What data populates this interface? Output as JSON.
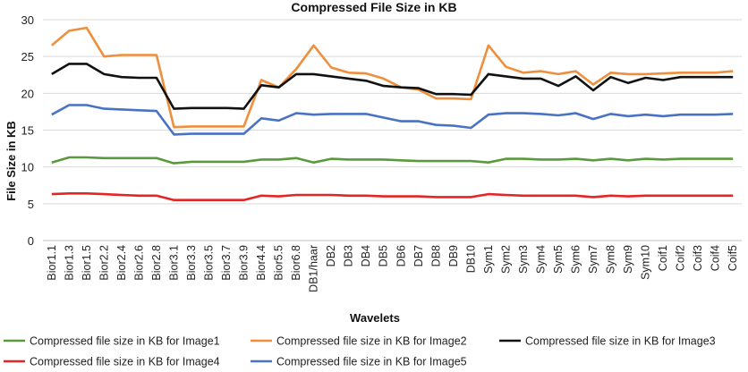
{
  "chart_data": {
    "type": "line",
    "title": "Compressed File Size in KB",
    "xlabel": "Wavelets",
    "ylabel": "File Size in KB",
    "ylim": [
      0,
      30
    ],
    "yticks": [
      0,
      5,
      10,
      15,
      20,
      25,
      30
    ],
    "grid": true,
    "legend_position": "bottom",
    "categories": [
      "Bior1.1",
      "Bior1.3",
      "Bior1.5",
      "Bior2.2",
      "Bior2.4",
      "Bior2.6",
      "Bior2.8",
      "Bior3.1",
      "Bior3.3",
      "Bior3.5",
      "Bior3.7",
      "Bior3.9",
      "Bior4.4",
      "Bior5.5",
      "Bior6.8",
      "DB1/haar",
      "DB2",
      "DB3",
      "DB4",
      "DB5",
      "DB6",
      "DB7",
      "DB8",
      "DB9",
      "DB10",
      "Sym1",
      "Sym2",
      "Sym3",
      "Sym4",
      "Sym5",
      "Sym6",
      "Sym7",
      "Sym8",
      "Sym9",
      "Sym10",
      "Coif1",
      "Coif2",
      "Coif3",
      "Coif4",
      "Coif5"
    ],
    "series": [
      {
        "name": "Compressed  file size in KB for Image1",
        "color": "#5a9a3c",
        "values": [
          10.6,
          11.3,
          11.3,
          11.2,
          11.2,
          11.2,
          11.2,
          10.5,
          10.7,
          10.7,
          10.7,
          10.7,
          11.0,
          11.0,
          11.2,
          10.6,
          11.1,
          11.0,
          11.0,
          11.0,
          10.9,
          10.8,
          10.8,
          10.8,
          10.8,
          10.6,
          11.1,
          11.1,
          11.0,
          11.0,
          11.1,
          10.9,
          11.1,
          10.9,
          11.1,
          11.0,
          11.1,
          11.1,
          11.1,
          11.1
        ]
      },
      {
        "name": "Compressed  file size in KB for Image2",
        "color": "#ee8f3d",
        "values": [
          26.5,
          28.5,
          28.9,
          25.0,
          25.2,
          25.2,
          25.2,
          15.4,
          15.5,
          15.5,
          15.5,
          15.5,
          21.8,
          20.8,
          23.3,
          26.5,
          23.5,
          22.8,
          22.7,
          22.0,
          20.8,
          20.5,
          19.3,
          19.3,
          19.2,
          26.5,
          23.6,
          22.8,
          23.0,
          22.6,
          23.0,
          21.2,
          22.8,
          22.6,
          22.6,
          22.7,
          22.8,
          22.8,
          22.8,
          23.0
        ]
      },
      {
        "name": "Compressed  file size in KB for Image3",
        "color": "#111111",
        "values": [
          22.6,
          24.0,
          24.0,
          22.6,
          22.2,
          22.1,
          22.1,
          17.9,
          18.0,
          18.0,
          18.0,
          17.9,
          21.1,
          20.8,
          22.6,
          22.6,
          22.3,
          22.0,
          21.7,
          21.0,
          20.8,
          20.7,
          19.9,
          19.9,
          19.8,
          22.6,
          22.3,
          22.0,
          22.0,
          21.0,
          22.3,
          20.4,
          22.2,
          21.4,
          22.1,
          21.8,
          22.2,
          22.2,
          22.2,
          22.2
        ]
      },
      {
        "name": "Compressed  file size in KB for Image4",
        "color": "#e52424",
        "values": [
          6.3,
          6.4,
          6.4,
          6.3,
          6.2,
          6.1,
          6.1,
          5.5,
          5.5,
          5.5,
          5.5,
          5.5,
          6.1,
          6.0,
          6.2,
          6.2,
          6.2,
          6.1,
          6.1,
          6.0,
          6.0,
          6.0,
          5.9,
          5.9,
          5.9,
          6.3,
          6.2,
          6.1,
          6.1,
          6.1,
          6.1,
          5.9,
          6.1,
          6.0,
          6.1,
          6.1,
          6.1,
          6.1,
          6.1,
          6.1
        ]
      },
      {
        "name": "Compressed  file size in KB for Image5",
        "color": "#4a72c4",
        "values": [
          17.1,
          18.4,
          18.4,
          17.9,
          17.8,
          17.7,
          17.6,
          14.4,
          14.5,
          14.5,
          14.5,
          14.5,
          16.6,
          16.3,
          17.3,
          17.1,
          17.2,
          17.2,
          17.2,
          16.7,
          16.2,
          16.2,
          15.7,
          15.6,
          15.3,
          17.1,
          17.3,
          17.3,
          17.2,
          17.0,
          17.3,
          16.5,
          17.2,
          16.9,
          17.1,
          16.9,
          17.1,
          17.1,
          17.1,
          17.2
        ]
      }
    ]
  }
}
